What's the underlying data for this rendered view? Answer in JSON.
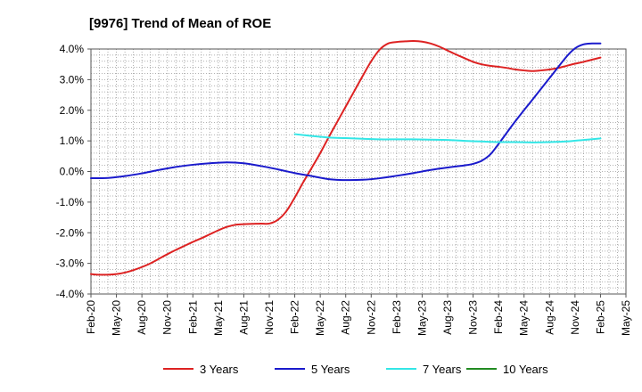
{
  "chart_data": {
    "type": "line",
    "title": "[9976]  Trend of Mean of ROE",
    "xlabel": "",
    "ylabel": "",
    "x_tick_labels": [
      "Feb-20",
      "May-20",
      "Aug-20",
      "Nov-20",
      "Feb-21",
      "May-21",
      "Aug-21",
      "Nov-21",
      "Feb-22",
      "May-22",
      "Aug-22",
      "Nov-22",
      "Feb-23",
      "May-23",
      "Aug-23",
      "Nov-23",
      "Feb-24",
      "May-24",
      "Aug-24",
      "Nov-24",
      "Feb-25",
      "May-25"
    ],
    "y_tick_labels": [
      "4.0%",
      "3.0%",
      "2.0%",
      "1.0%",
      "0.0%",
      "-1.0%",
      "-2.0%",
      "-3.0%",
      "-4.0%"
    ],
    "ylim": [
      -4.0,
      4.0
    ],
    "grid": true,
    "legend_position": "bottom",
    "series": [
      {
        "name": "3 Years",
        "color": "#dd2222",
        "points": [
          [
            "Feb-20",
            -3.35
          ],
          [
            "Mar-20",
            -3.37
          ],
          [
            "Apr-20",
            -3.37
          ],
          [
            "May-20",
            -3.35
          ],
          [
            "Jun-20",
            -3.3
          ],
          [
            "Jul-20",
            -3.22
          ],
          [
            "Aug-20",
            -3.12
          ],
          [
            "Sep-20",
            -3.0
          ],
          [
            "Oct-20",
            -2.85
          ],
          [
            "Nov-20",
            -2.7
          ],
          [
            "Dec-20",
            -2.56
          ],
          [
            "Jan-21",
            -2.43
          ],
          [
            "Feb-21",
            -2.3
          ],
          [
            "Mar-21",
            -2.18
          ],
          [
            "Apr-21",
            -2.05
          ],
          [
            "May-21",
            -1.92
          ],
          [
            "Jun-21",
            -1.81
          ],
          [
            "Jul-21",
            -1.74
          ],
          [
            "Aug-21",
            -1.72
          ],
          [
            "Sep-21",
            -1.71
          ],
          [
            "Oct-21",
            -1.7
          ],
          [
            "Nov-21",
            -1.7
          ],
          [
            "Dec-21",
            -1.58
          ],
          [
            "Jan-22",
            -1.3
          ],
          [
            "Feb-22",
            -0.85
          ],
          [
            "Mar-22",
            -0.35
          ],
          [
            "Apr-22",
            0.12
          ],
          [
            "May-22",
            0.6
          ],
          [
            "Jun-22",
            1.12
          ],
          [
            "Jul-22",
            1.62
          ],
          [
            "Aug-22",
            2.12
          ],
          [
            "Sep-22",
            2.62
          ],
          [
            "Oct-22",
            3.12
          ],
          [
            "Nov-22",
            3.6
          ],
          [
            "Dec-22",
            3.98
          ],
          [
            "Jan-23",
            4.18
          ],
          [
            "Feb-23",
            4.23
          ],
          [
            "Mar-23",
            4.25
          ],
          [
            "Apr-23",
            4.26
          ],
          [
            "May-23",
            4.24
          ],
          [
            "Jun-23",
            4.18
          ],
          [
            "Jul-23",
            4.08
          ],
          [
            "Aug-23",
            3.95
          ],
          [
            "Sep-23",
            3.82
          ],
          [
            "Oct-23",
            3.7
          ],
          [
            "Nov-23",
            3.58
          ],
          [
            "Dec-23",
            3.5
          ],
          [
            "Jan-24",
            3.45
          ],
          [
            "Feb-24",
            3.42
          ],
          [
            "Mar-24",
            3.38
          ],
          [
            "Apr-24",
            3.33
          ],
          [
            "May-24",
            3.3
          ],
          [
            "Jun-24",
            3.28
          ],
          [
            "Jul-24",
            3.3
          ],
          [
            "Aug-24",
            3.33
          ],
          [
            "Sep-24",
            3.38
          ],
          [
            "Oct-24",
            3.45
          ],
          [
            "Nov-24",
            3.52
          ],
          [
            "Dec-24",
            3.58
          ],
          [
            "Jan-25",
            3.65
          ],
          [
            "Feb-25",
            3.72
          ]
        ]
      },
      {
        "name": "5 Years",
        "color": "#1a1acc",
        "points": [
          [
            "Feb-20",
            -0.22
          ],
          [
            "Apr-20",
            -0.21
          ],
          [
            "Jun-20",
            -0.15
          ],
          [
            "Aug-20",
            -0.06
          ],
          [
            "Oct-20",
            0.05
          ],
          [
            "Dec-20",
            0.15
          ],
          [
            "Feb-21",
            0.22
          ],
          [
            "Apr-21",
            0.27
          ],
          [
            "Jun-21",
            0.3
          ],
          [
            "Aug-21",
            0.27
          ],
          [
            "Oct-21",
            0.18
          ],
          [
            "Dec-21",
            0.07
          ],
          [
            "Feb-22",
            -0.05
          ],
          [
            "Apr-22",
            -0.15
          ],
          [
            "Jun-22",
            -0.25
          ],
          [
            "Aug-22",
            -0.28
          ],
          [
            "Oct-22",
            -0.27
          ],
          [
            "Dec-22",
            -0.22
          ],
          [
            "Feb-23",
            -0.14
          ],
          [
            "Apr-23",
            -0.05
          ],
          [
            "Jun-23",
            0.05
          ],
          [
            "Aug-23",
            0.13
          ],
          [
            "Oct-23",
            0.2
          ],
          [
            "Nov-23",
            0.25
          ],
          [
            "Dec-23",
            0.35
          ],
          [
            "Jan-24",
            0.55
          ],
          [
            "Feb-24",
            0.9
          ],
          [
            "Apr-24",
            1.65
          ],
          [
            "Jun-24",
            2.35
          ],
          [
            "Aug-24",
            3.05
          ],
          [
            "Oct-24",
            3.75
          ],
          [
            "Nov-24",
            4.02
          ],
          [
            "Dec-24",
            4.15
          ],
          [
            "Jan-25",
            4.18
          ],
          [
            "Feb-25",
            4.18
          ]
        ]
      },
      {
        "name": "7 Years",
        "color": "#33e6e6",
        "points": [
          [
            "Feb-22",
            1.22
          ],
          [
            "Apr-22",
            1.16
          ],
          [
            "Jun-22",
            1.11
          ],
          [
            "Aug-22",
            1.09
          ],
          [
            "Oct-22",
            1.07
          ],
          [
            "Dec-22",
            1.05
          ],
          [
            "Feb-23",
            1.05
          ],
          [
            "Apr-23",
            1.05
          ],
          [
            "Jun-23",
            1.04
          ],
          [
            "Aug-23",
            1.03
          ],
          [
            "Oct-23",
            1.0
          ],
          [
            "Dec-23",
            0.98
          ],
          [
            "Feb-24",
            0.96
          ],
          [
            "Apr-24",
            0.96
          ],
          [
            "Jun-24",
            0.95
          ],
          [
            "Aug-24",
            0.96
          ],
          [
            "Oct-24",
            0.98
          ],
          [
            "Dec-24",
            1.03
          ],
          [
            "Feb-25",
            1.08
          ]
        ]
      },
      {
        "name": "10 Years",
        "color": "#228b22",
        "points": []
      }
    ]
  }
}
